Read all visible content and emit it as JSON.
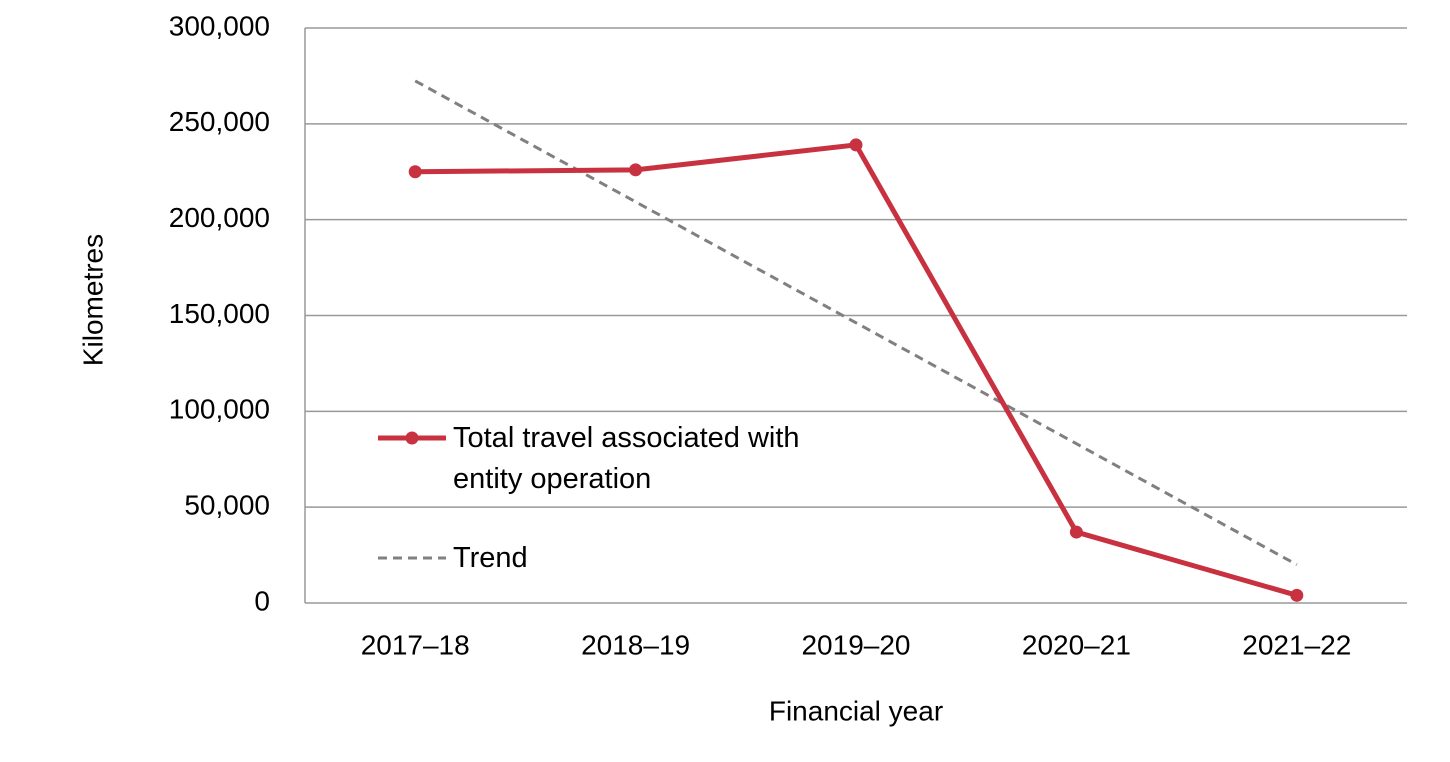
{
  "chart_data": {
    "type": "line",
    "x_label": "Financial year",
    "y_label": "Kilometres",
    "categories": [
      "2017–18",
      "2018–19",
      "2019–20",
      "2020–21",
      "2021–22"
    ],
    "series": [
      {
        "name": "Total travel associated with entity operation",
        "color": "#c8313f",
        "values": [
          225000,
          226000,
          239000,
          37000,
          4000
        ],
        "markers": true,
        "dashed": false
      },
      {
        "name": "Trend",
        "color": "#808080",
        "values": [
          272400,
          209300,
          146200,
          83100,
          20000
        ],
        "markers": false,
        "dashed": true
      }
    ],
    "ylim": [
      0,
      300000
    ],
    "yticks": [
      0,
      {
        "value": 50000,
        "label": "50,000"
      },
      {
        "value": 100000,
        "label": "100,000"
      },
      {
        "value": 150000,
        "label": "150,000"
      },
      {
        "value": 200000,
        "label": "200,000"
      },
      {
        "value": 250000,
        "label": "250,000"
      },
      {
        "value": 300000,
        "label": "300,000"
      }
    ],
    "grid": true
  }
}
